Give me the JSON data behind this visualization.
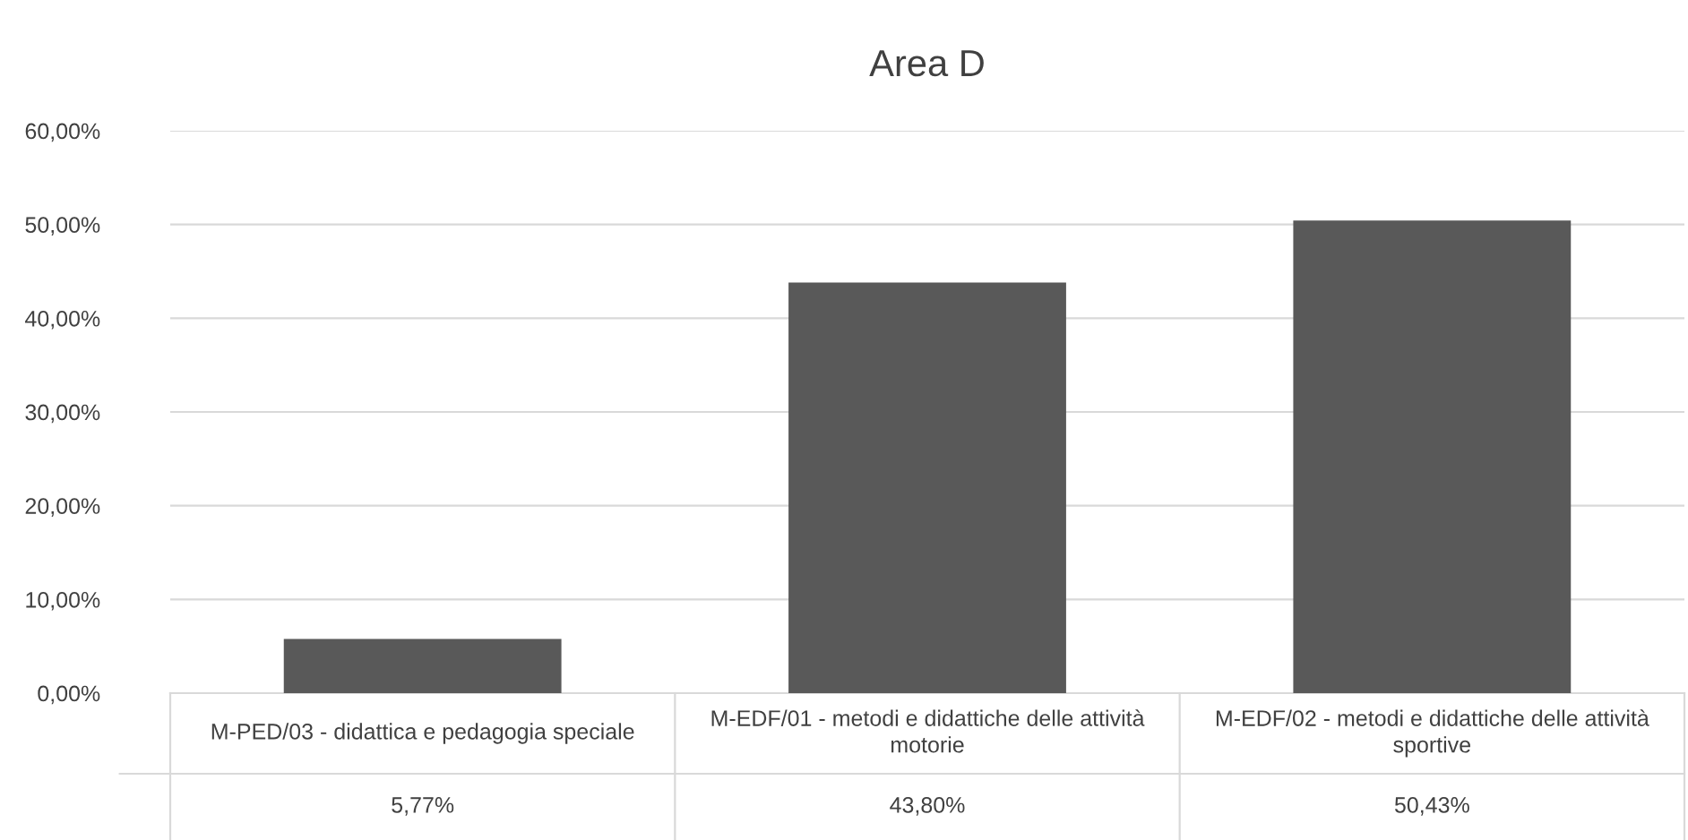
{
  "chart_data": {
    "type": "bar",
    "title": "Area D",
    "categories": [
      "M-PED/03 - didattica e pedagogia speciale",
      "M-EDF/01 - metodi e didattiche delle attività motorie",
      "M-EDF/02 - metodi e didattiche delle attività sportive"
    ],
    "values": [
      5.77,
      43.8,
      50.43
    ],
    "color": "#595959",
    "value_labels": [
      "5,77%",
      "43,80%",
      "50,43%"
    ],
    "ylim": [
      0,
      60
    ],
    "yticks": [
      {
        "value": 0,
        "label": "0,00%"
      },
      {
        "value": 10,
        "label": "10,00%"
      },
      {
        "value": 20,
        "label": "20,00%"
      },
      {
        "value": 30,
        "label": "30,00%"
      },
      {
        "value": 40,
        "label": "40,00%"
      },
      {
        "value": 50,
        "label": "50,00%"
      },
      {
        "value": 60,
        "label": "60,00%"
      }
    ],
    "grid": "y",
    "legend": false
  }
}
